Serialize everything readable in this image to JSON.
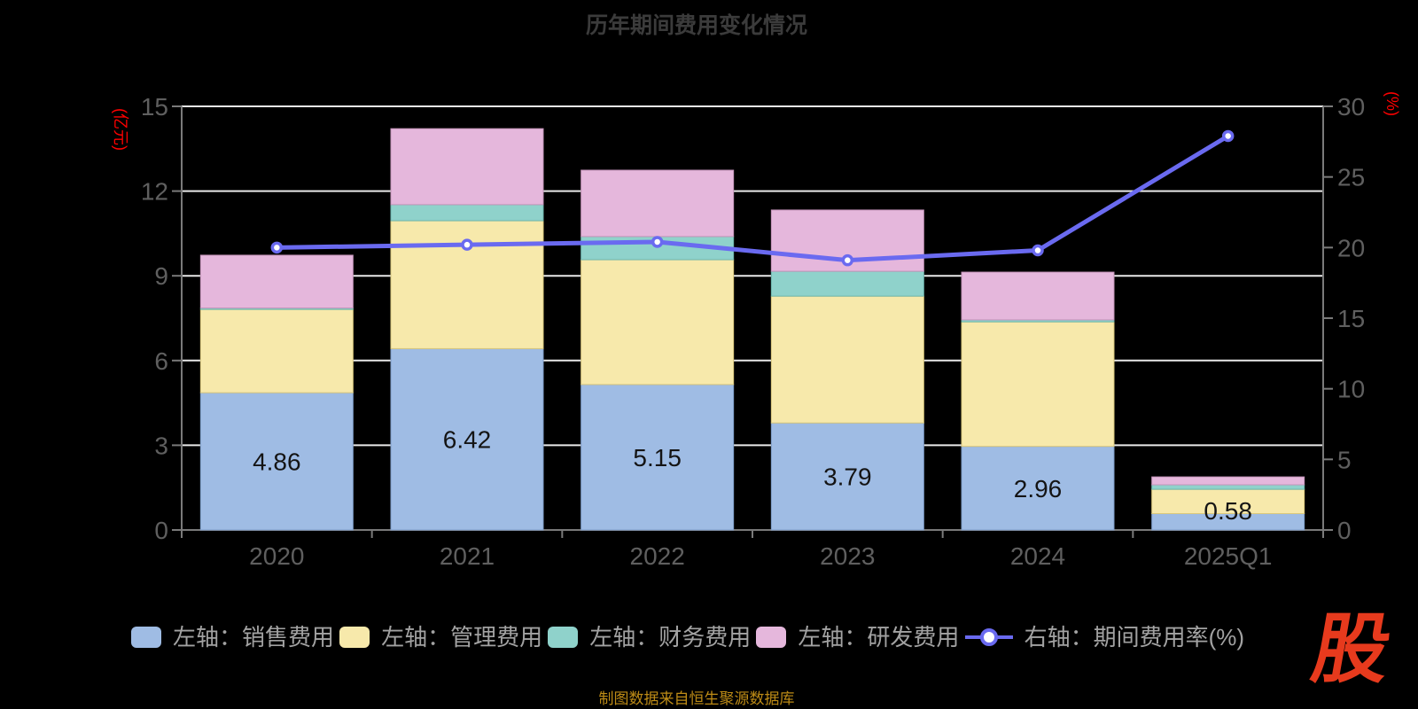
{
  "title": "历年期间费用变化情况",
  "source_note": "制图数据来自恒生聚源数据库",
  "logo_text": "股",
  "colors": {
    "background": "#000000",
    "grid": "#e9e9e9",
    "axis": "#7a7a7a",
    "axis_label": "#5f5f5f",
    "title": "#3b3b3b",
    "axis_name": "#ff0000",
    "legend_text": "#a2a2a2",
    "bar_label": "#141414",
    "source_text": "#bd8b16",
    "logo": "#e73a1d",
    "line": "#6a6af0"
  },
  "chart_data": {
    "type": "bar",
    "subtype": "stacked-bars-with-right-axis-line",
    "title": "历年期间费用变化情况",
    "categories": [
      "2020",
      "2021",
      "2022",
      "2023",
      "2024",
      "2025Q1"
    ],
    "left_axis": {
      "name": "(亿元)",
      "min": 0,
      "max": 15,
      "ticks": [
        0,
        3,
        6,
        9,
        12,
        15
      ]
    },
    "right_axis": {
      "name": "(%)",
      "min": 0,
      "max": 30,
      "ticks": [
        0,
        5,
        10,
        15,
        20,
        25,
        30
      ]
    },
    "grid": true,
    "legend_position": "bottom",
    "bar_series": [
      {
        "key": "sales",
        "name": "左轴：销售费用",
        "color": "#9fbce4",
        "border": "#7d9cc8",
        "values": [
          4.86,
          6.42,
          5.15,
          3.79,
          2.96,
          0.58
        ]
      },
      {
        "key": "management",
        "name": "左轴：管理费用",
        "color": "#f7e9ab",
        "border": "#d9c77c",
        "values": [
          2.95,
          4.53,
          4.42,
          4.49,
          4.41,
          0.86
        ]
      },
      {
        "key": "financial",
        "name": "左轴：财务费用",
        "color": "#8fd2cb",
        "border": "#6db5ac",
        "values": [
          0.05,
          0.57,
          0.82,
          0.88,
          0.07,
          0.16
        ]
      },
      {
        "key": "rd",
        "name": "左轴：研发费用",
        "color": "#e5b7dc",
        "border": "#c493b9",
        "values": [
          1.87,
          2.69,
          2.35,
          2.17,
          1.69,
          0.28
        ]
      }
    ],
    "bar_totals": [
      9.73,
      14.21,
      12.74,
      11.33,
      9.13,
      1.88
    ],
    "bar_labels": [
      "4.86",
      "6.42",
      "5.15",
      "3.79",
      "2.96",
      "0.58"
    ],
    "line_series": {
      "key": "expense-ratio",
      "name": "右轴：期间费用率(%)",
      "color": "#6a6af0",
      "marker_fill": "#ffffff",
      "values": [
        20.0,
        20.2,
        20.4,
        19.1,
        19.8,
        27.9
      ]
    }
  }
}
